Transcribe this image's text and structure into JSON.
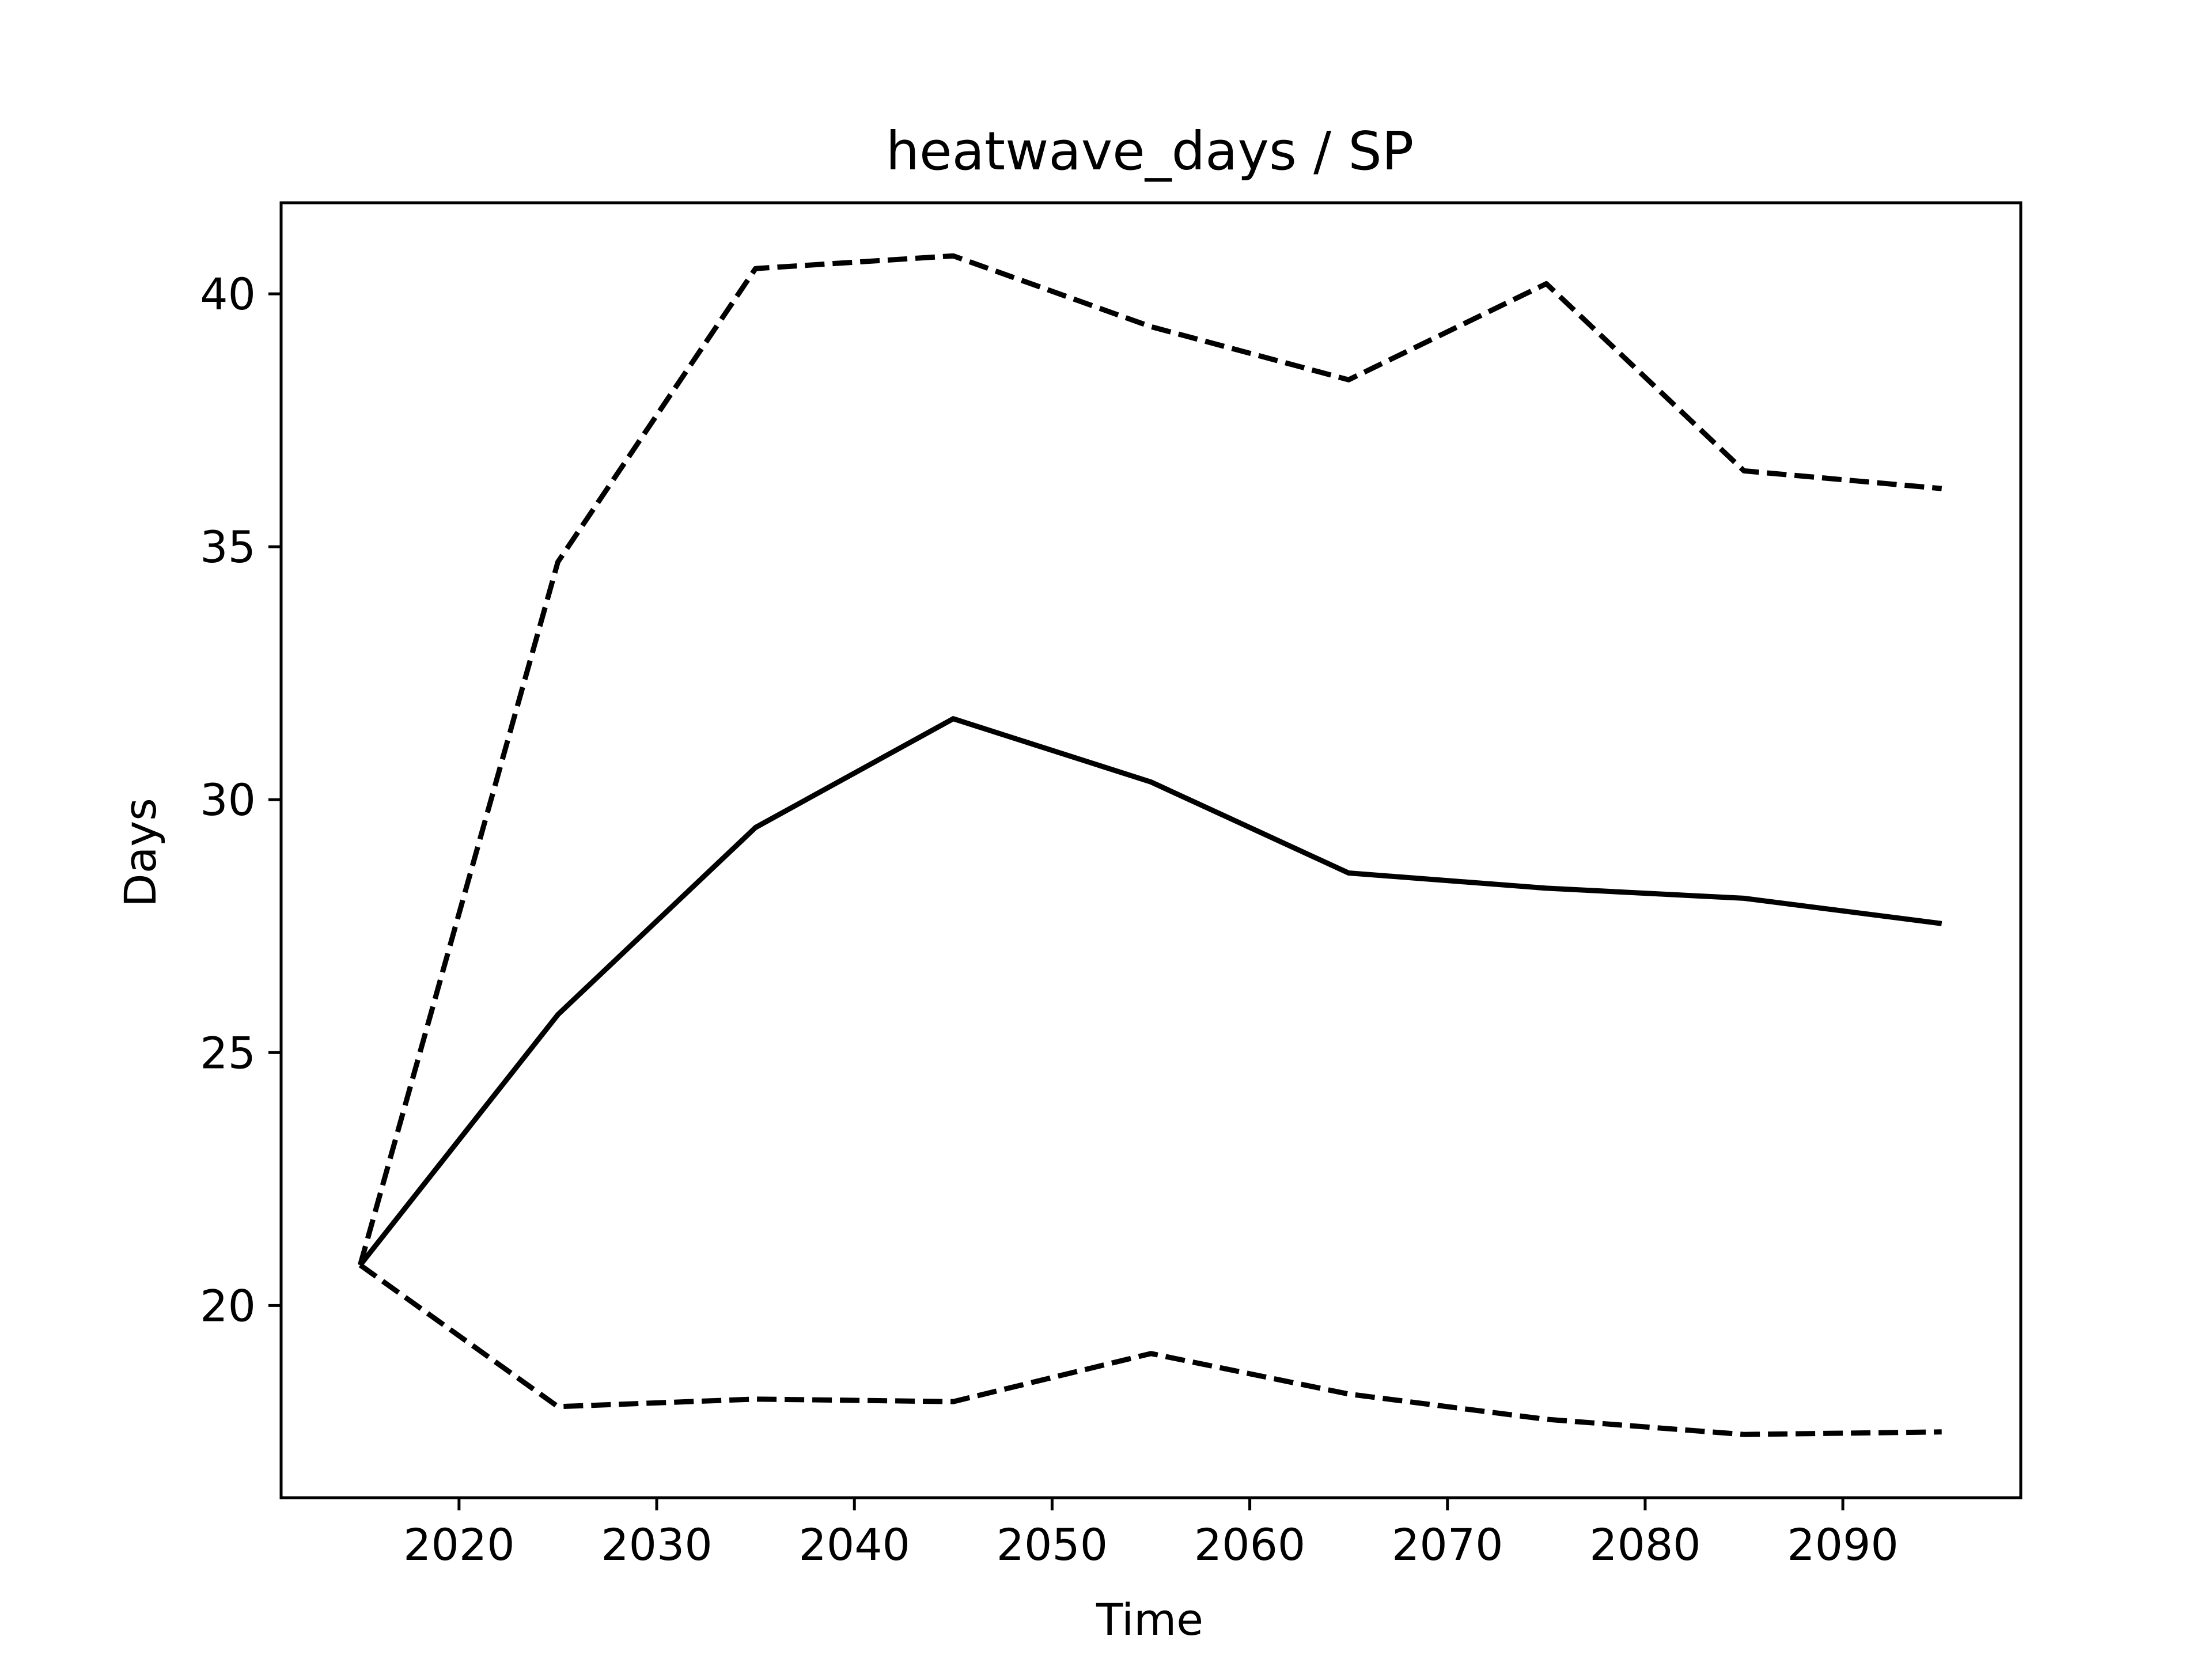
{
  "chart_data": {
    "type": "line",
    "title": "heatwave_days / SP",
    "xlabel": "Time",
    "ylabel": "Days",
    "xlim": [
      2011,
      2099
    ],
    "ylim": [
      16.2,
      41.8
    ],
    "xticks": [
      2020,
      2030,
      2040,
      2050,
      2060,
      2070,
      2080,
      2090
    ],
    "yticks": [
      20,
      25,
      30,
      35,
      40
    ],
    "x": [
      2015,
      2025,
      2035,
      2045,
      2055,
      2065,
      2075,
      2085,
      2095
    ],
    "series": [
      {
        "style": "solid",
        "color": "#000000",
        "values": [
          20.8,
          25.75,
          29.45,
          31.6,
          30.35,
          28.55,
          28.25,
          28.05,
          27.55
        ]
      },
      {
        "style": "dashed",
        "color": "#000000",
        "values": [
          20.8,
          34.7,
          40.5,
          40.75,
          39.35,
          38.3,
          40.2,
          36.5,
          36.15
        ]
      },
      {
        "style": "dashed",
        "color": "#000000",
        "values": [
          20.8,
          18.0,
          18.15,
          18.1,
          19.05,
          18.25,
          17.75,
          17.45,
          17.5
        ]
      }
    ],
    "grid": false,
    "legend": "none"
  }
}
